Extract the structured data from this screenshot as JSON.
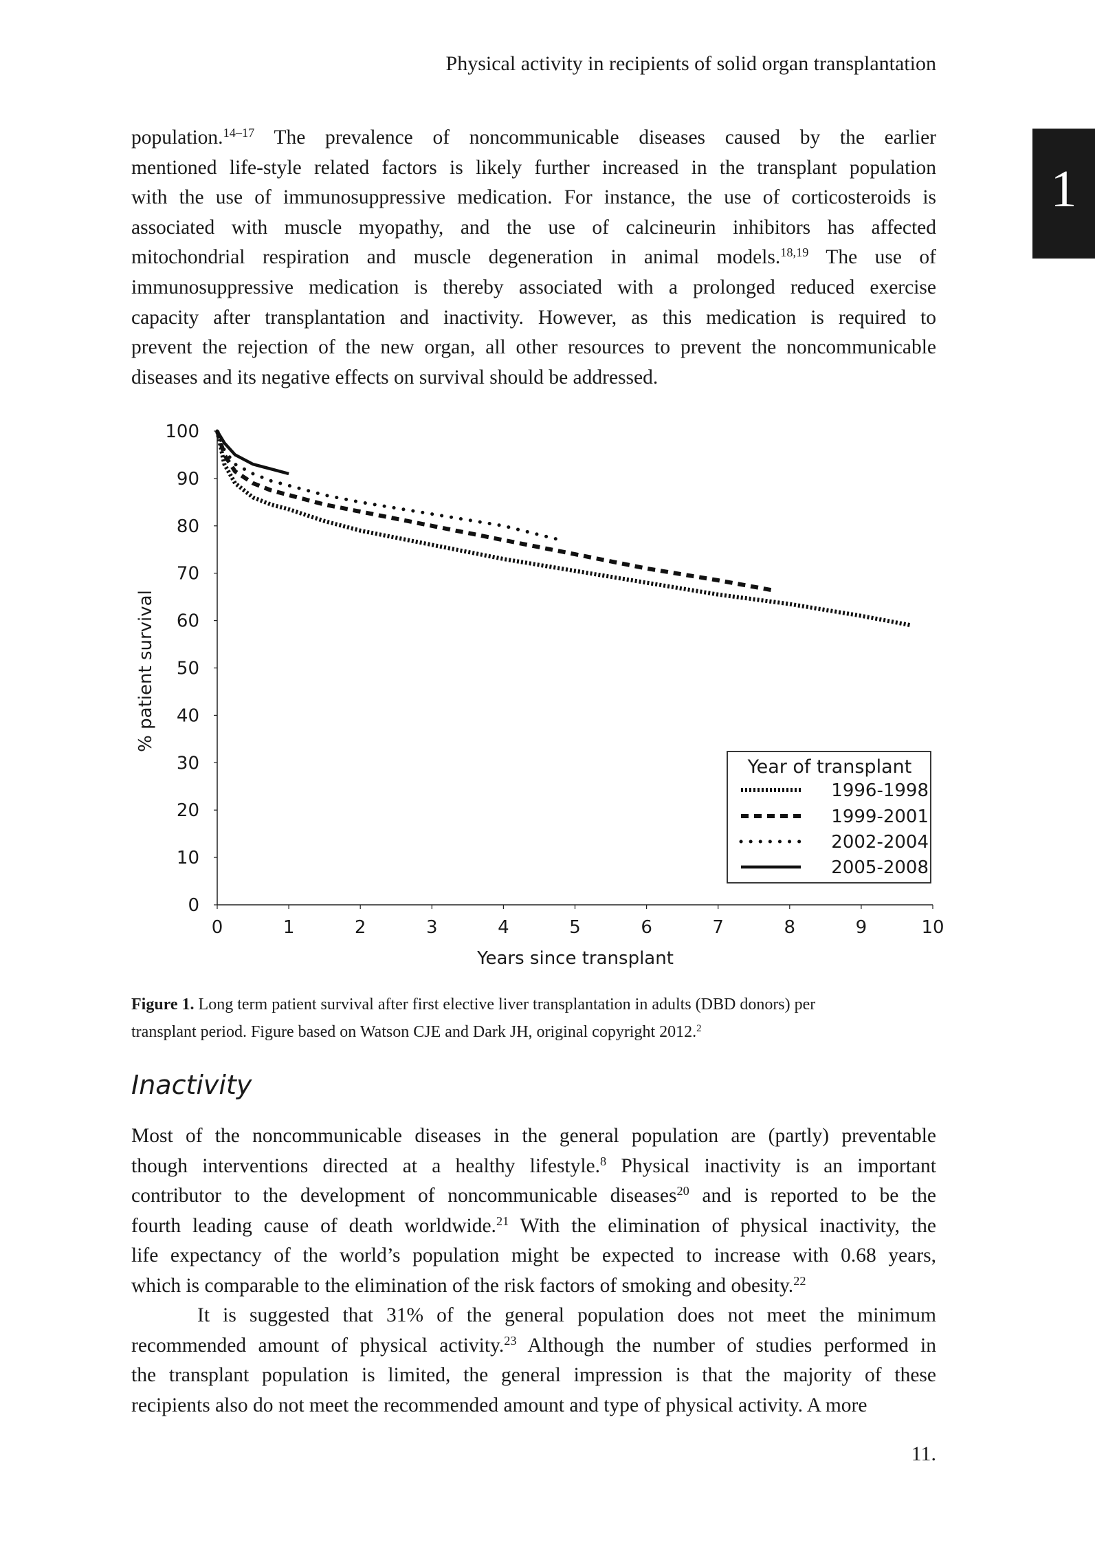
{
  "header": {
    "running_title": "Physical activity in recipients of solid organ transplantation",
    "chapter_tab": "1"
  },
  "paragraphs": [
    {
      "top": 0,
      "lines": [
        [
          {
            "t": "population."
          },
          {
            "s": "14–17"
          },
          {
            "t": " The prevalence of noncommunicable diseases caused by the earlier"
          }
        ],
        [
          {
            "t": "mentioned life-style related factors is likely further increased in the transplant population"
          }
        ],
        [
          {
            "t": "with the use of immunosuppressive medication. For instance, the use of corticosteroids is"
          }
        ],
        [
          {
            "t": "associated with muscle myopathy, and the use of calcineurin inhibitors has affected"
          }
        ],
        [
          {
            "t": "mitochondrial respiration and muscle degeneration in animal models."
          },
          {
            "s": "18,19"
          },
          {
            "t": " The use of"
          }
        ],
        [
          {
            "t": "immunosuppressive medication is thereby associated with a prolonged reduced exercise"
          }
        ],
        [
          {
            "t": "capacity after transplantation and inactivity. However, as this medication is required to"
          }
        ],
        [
          {
            "t": "prevent the rejection of the new organ, all other resources to prevent the noncommunicable"
          }
        ],
        [
          {
            "t": "diseases and its negative effects on survival should be addressed."
          }
        ]
      ]
    },
    {
      "top": 1,
      "lines": [
        [
          {
            "t": "Most of the noncommunicable diseases in the general population are (partly) preventable"
          }
        ],
        [
          {
            "t": "though interventions directed at a healthy lifestyle."
          },
          {
            "s": "8"
          },
          {
            "t": " Physical inactivity is an important"
          }
        ],
        [
          {
            "t": "contributor to the development of noncommunicable diseases"
          },
          {
            "s": "20"
          },
          {
            "t": " and is reported to be the"
          }
        ],
        [
          {
            "t": "fourth leading cause of death worldwide."
          },
          {
            "s": "21"
          },
          {
            "t": " With the elimination of physical inactivity, the"
          }
        ],
        [
          {
            "t": "life expectancy of the world’s population might be expected to increase with 0.68 years,"
          }
        ],
        [
          {
            "t": "which is comparable to the elimination of the risk factors of smoking and obesity."
          },
          {
            "s": "22"
          }
        ]
      ]
    },
    {
      "top": 2,
      "lines": [
        [
          {
            "t": "It is suggested that 31% of the general population does not meet the minimum"
          }
        ],
        [
          {
            "t": "recommended amount of physical activity."
          },
          {
            "s": "23"
          },
          {
            "t": " Although the number of studies performed in"
          }
        ],
        [
          {
            "t": "the transplant population is limited, the general impression is that the majority of these"
          }
        ],
        [
          {
            "t": "recipients also do not meet the recommended amount and type of physical activity. A more"
          }
        ]
      ]
    }
  ],
  "caption": {
    "label": "Figure 1.",
    "line1": " Long term patient survival after first elective liver transplantation in adults (DBD donors) per",
    "line2": "transplant period. Figure based on Watson CJE and Dark JH, original copyright 2012.",
    "ref": "2"
  },
  "section_heading": "Inactivity",
  "page_number": "11.",
  "chart_data": {
    "type": "line",
    "title": "",
    "xlabel": "Years since transplant",
    "ylabel": "% patient survival",
    "xlim": [
      0,
      10
    ],
    "ylim": [
      0,
      100
    ],
    "xticks": [
      "0",
      "1",
      "2",
      "3",
      "4",
      "5",
      "6",
      "7",
      "8",
      "9",
      "10"
    ],
    "yticks": [
      "0",
      "10",
      "20",
      "30",
      "40",
      "50",
      "60",
      "70",
      "80",
      "90",
      "100"
    ],
    "grid": false,
    "legend": {
      "title": "Year of transplant",
      "placement": "bottom-right"
    },
    "series": [
      {
        "name": "1996-1998",
        "style": "dense-dotted",
        "x": [
          0,
          0.1,
          0.25,
          0.5,
          0.75,
          1,
          1.5,
          2,
          3,
          4,
          5,
          6,
          7,
          8,
          9,
          9.7
        ],
        "y": [
          100,
          93,
          89,
          86,
          84.5,
          83.5,
          81,
          79,
          76,
          73,
          70.5,
          68,
          65.5,
          63.5,
          61,
          59
        ]
      },
      {
        "name": "1999-2001",
        "style": "dashed",
        "x": [
          0,
          0.1,
          0.25,
          0.5,
          0.75,
          1,
          1.5,
          2,
          3,
          4,
          5,
          6,
          7,
          7.8
        ],
        "y": [
          100,
          95,
          91.5,
          89,
          87.5,
          86.5,
          84.5,
          83,
          80,
          77,
          74,
          71,
          68.5,
          66.3
        ]
      },
      {
        "name": "2002-2004",
        "style": "sparse-dotted",
        "x": [
          0,
          0.1,
          0.25,
          0.5,
          0.75,
          1,
          1.5,
          2,
          3,
          4,
          4.8
        ],
        "y": [
          100,
          96,
          93,
          91,
          89.5,
          88.5,
          86.5,
          85,
          82.5,
          80,
          77
        ]
      },
      {
        "name": "2005-2008",
        "style": "solid",
        "x": [
          0,
          0.1,
          0.25,
          0.5,
          0.75,
          1
        ],
        "y": [
          100,
          97.5,
          95,
          93,
          92,
          91
        ]
      }
    ]
  }
}
